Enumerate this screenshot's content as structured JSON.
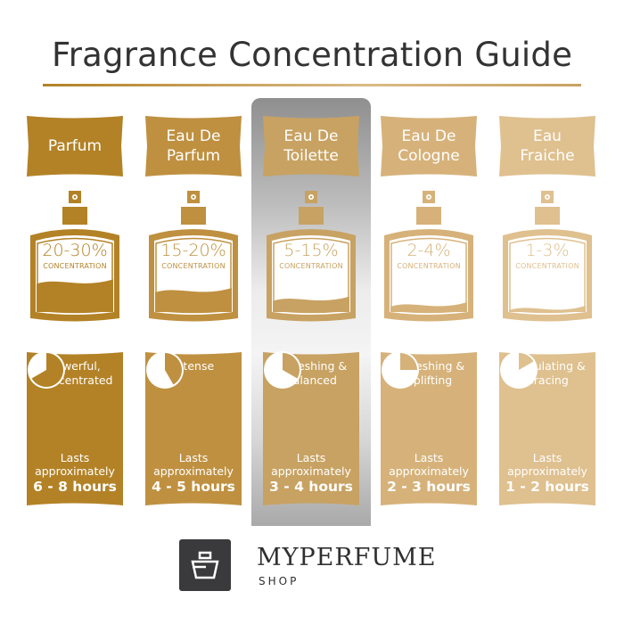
{
  "title": "Fragrance Concentration Guide",
  "highlighted_index": 2,
  "columns": [
    {
      "name": "Parfum",
      "percent": "20-30%",
      "concentration_label": "CONCENTRATION",
      "liquid_level": 0.42,
      "description": "Powerful,\nConcentrated",
      "lasts_label": "Lasts\napproximately",
      "duration": "6 - 8 hours",
      "clock_hours": 8,
      "color": "#b38226"
    },
    {
      "name": "Eau De\nParfum",
      "percent": "15-20%",
      "concentration_label": "CONCENTRATION",
      "liquid_level": 0.3,
      "description": "Intense",
      "lasts_label": "Lasts\napproximately",
      "duration": "4 - 5 hours",
      "clock_hours": 5,
      "color": "#bf9040"
    },
    {
      "name": "Eau De\nToilette",
      "percent": "5-15%",
      "concentration_label": "CONCENTRATION",
      "liquid_level": 0.18,
      "description": "Refreshing &\nBalanced",
      "lasts_label": "Lasts\napproximately",
      "duration": "3 - 4 hours",
      "clock_hours": 4,
      "color": "#c8a262"
    },
    {
      "name": "Eau De\nCologne",
      "percent": "2-4%",
      "concentration_label": "CONCENTRATION",
      "liquid_level": 0.1,
      "description": "Refreshing &\nUplifting",
      "lasts_label": "Lasts\napproximately",
      "duration": "2 - 3 hours",
      "clock_hours": 3,
      "color": "#d6b27a"
    },
    {
      "name": "Eau\nFraiche",
      "percent": "1-3%",
      "concentration_label": "CONCENTRATION",
      "liquid_level": 0.05,
      "description": "Stimulating &\nBracing",
      "lasts_label": "Lasts\napproximately",
      "duration": "1 - 2 hours",
      "clock_hours": 2,
      "color": "#dfc08f"
    }
  ],
  "logo": {
    "brand": "MYPERFUME",
    "sub": "SHOP",
    "text_color": "#2f2f31",
    "box_color": "#3a3a3c"
  }
}
